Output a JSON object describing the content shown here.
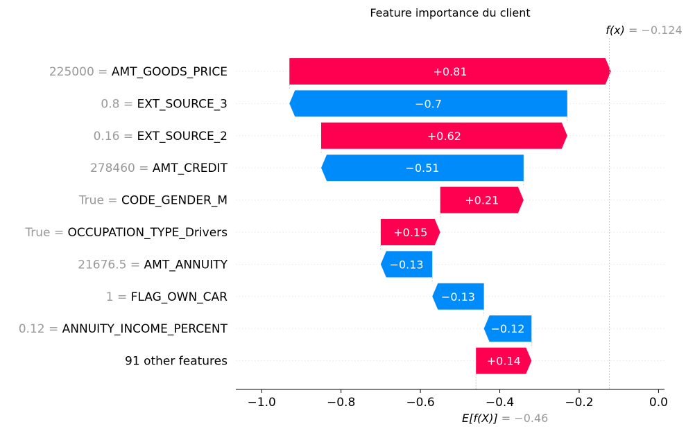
{
  "chart_data": {
    "type": "waterfall",
    "title": "Feature importance du client",
    "base_value": -0.46,
    "output_value": -0.124,
    "base_label": "E[f(X)]",
    "base_value_label": "= −0.46",
    "output_label": "f(x)",
    "output_value_label": "= −0.124",
    "xlim": [
      -1.065,
      0.015
    ],
    "xticks": [
      -1.0,
      -0.8,
      -0.6,
      -0.4,
      -0.2,
      0.0
    ],
    "xtick_labels": [
      "−1.0",
      "−0.8",
      "−0.6",
      "−0.4",
      "−0.2",
      "0.0"
    ],
    "colors": {
      "positive": "#ff0051",
      "negative": "#008bfb",
      "value_text": "#999999"
    },
    "features": [
      {
        "name": "AMT_GOODS_PRICE",
        "value": "225000 =",
        "contribution": 0.81,
        "label": "+0.81"
      },
      {
        "name": "EXT_SOURCE_3",
        "value": "0.8 =",
        "contribution": -0.7,
        "label": "−0.7"
      },
      {
        "name": "EXT_SOURCE_2",
        "value": "0.16 =",
        "contribution": 0.62,
        "label": "+0.62"
      },
      {
        "name": "AMT_CREDIT",
        "value": "278460 =",
        "contribution": -0.51,
        "label": "−0.51"
      },
      {
        "name": "CODE_GENDER_M",
        "value": "True =",
        "contribution": 0.21,
        "label": "+0.21"
      },
      {
        "name": "OCCUPATION_TYPE_Drivers",
        "value": "True =",
        "contribution": 0.15,
        "label": "+0.15"
      },
      {
        "name": "AMT_ANNUITY",
        "value": "21676.5 =",
        "contribution": -0.13,
        "label": "−0.13"
      },
      {
        "name": "FLAG_OWN_CAR",
        "value": "1 =",
        "contribution": -0.13,
        "label": "−0.13"
      },
      {
        "name": "ANNUITY_INCOME_PERCENT",
        "value": "0.12 =",
        "contribution": -0.12,
        "label": "−0.12"
      },
      {
        "name": "91 other features",
        "value": "",
        "contribution": 0.14,
        "label": "+0.14"
      }
    ]
  }
}
